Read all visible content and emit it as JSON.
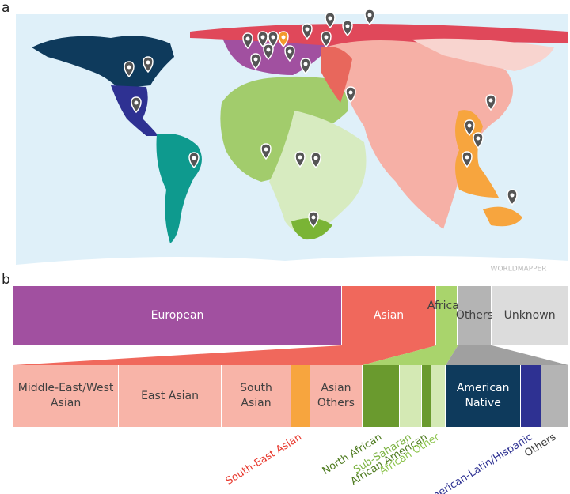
{
  "panels": [
    "a",
    "b"
  ],
  "map": {
    "watermark": "WORLDMAPPER"
  },
  "chart_data": [
    {
      "type": "stacked-bar",
      "categories": [
        "European",
        "Asian",
        "African",
        "Others",
        "Unknown"
      ],
      "values": [
        59.2,
        17.0,
        3.9,
        6.1,
        13.8
      ],
      "colors": [
        "#a150a0",
        "#f0685c",
        "#a9d46c",
        "#b4b4b4",
        "#dcdcdc"
      ],
      "label_colors": [
        "#ffffff",
        "#ffffff",
        "#404040",
        "#404040",
        "#404040"
      ],
      "label_placement": [
        "inside",
        "inside",
        "inside",
        "inside",
        "inside"
      ]
    },
    {
      "type": "stacked-bar",
      "categories": [
        "Middle-East/West Asian",
        "East Asian",
        "South Asian",
        "South-East Asian",
        "Asian Others",
        "North African",
        "Sub-Saharan",
        "African American",
        "African Other",
        "American Native",
        "American-Latin/Hispanic",
        "Others"
      ],
      "values": [
        19.0,
        18.5,
        12.6,
        3.4,
        9.4,
        6.7,
        4.0,
        1.7,
        2.6,
        13.6,
        3.7,
        4.8
      ],
      "colors": [
        "#f8b4a8",
        "#f8b4a8",
        "#f8b4a8",
        "#f7a53e",
        "#f8b4a8",
        "#6a9a2e",
        "#d4e9b4",
        "#6a9a2e",
        "#d4e9b4",
        "#0e3a5c",
        "#2e3192",
        "#b4b4b4"
      ],
      "label_colors": [
        "#404040",
        "#404040",
        "#404040",
        "#e8392e",
        "#404040",
        "#4d7a1e",
        "#7cb342",
        "#4d7a1e",
        "#8bc34a",
        "#ffffff",
        "#2e3192",
        "#404040"
      ],
      "label_placement": [
        "inside",
        "inside",
        "inside",
        "below",
        "inside",
        "below",
        "below",
        "below",
        "below",
        "inside",
        "below",
        "below"
      ]
    }
  ]
}
